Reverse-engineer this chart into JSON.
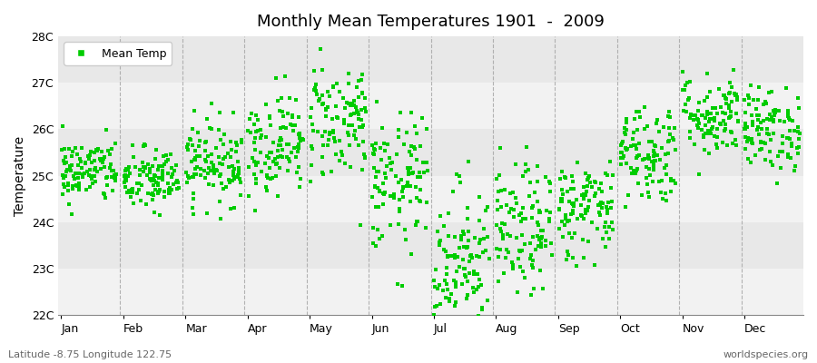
{
  "title": "Monthly Mean Temperatures 1901  -  2009",
  "ylabel": "Temperature",
  "xlabel_months": [
    "Jan",
    "Feb",
    "Mar",
    "Apr",
    "May",
    "Jun",
    "Jul",
    "Aug",
    "Sep",
    "Oct",
    "Nov",
    "Dec"
  ],
  "ylim": [
    22.0,
    28.0
  ],
  "yticks": [
    22,
    23,
    24,
    25,
    26,
    27,
    28
  ],
  "ytick_labels": [
    "22C",
    "23C",
    "24C",
    "25C",
    "26C",
    "27C",
    "28C"
  ],
  "point_color": "#00CC00",
  "marker": "s",
  "marker_size": 2.5,
  "legend_label": "Mean Temp",
  "footer_left": "Latitude -8.75 Longitude 122.75",
  "footer_right": "worldspecies.org",
  "bg_color": "#ffffff",
  "band_colors_even": "#f2f2f2",
  "band_colors_odd": "#e8e8e8",
  "monthly_mean_temps": [
    25.1,
    24.9,
    25.3,
    25.7,
    26.2,
    24.8,
    23.2,
    23.8,
    24.3,
    25.5,
    26.3,
    26.0
  ],
  "monthly_std": [
    0.35,
    0.35,
    0.45,
    0.55,
    0.65,
    0.75,
    0.85,
    0.7,
    0.55,
    0.55,
    0.45,
    0.45
  ],
  "n_years": 109,
  "seed": 42,
  "dashed_line_color": "#aaaaaa",
  "axis_line_color": "#888888",
  "tick_label_fontsize": 9,
  "ylabel_fontsize": 10,
  "title_fontsize": 13,
  "footer_fontsize": 8,
  "footer_color": "#666666"
}
